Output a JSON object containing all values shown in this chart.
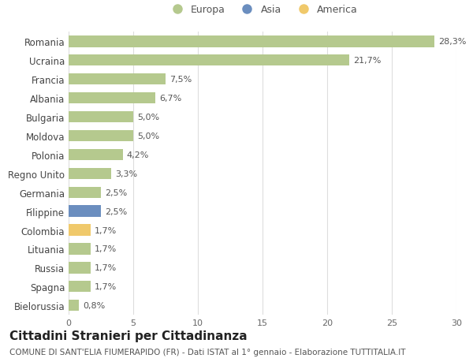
{
  "categories": [
    "Romania",
    "Ucraina",
    "Francia",
    "Albania",
    "Bulgaria",
    "Moldova",
    "Polonia",
    "Regno Unito",
    "Germania",
    "Filippine",
    "Colombia",
    "Lituania",
    "Russia",
    "Spagna",
    "Bielorussia"
  ],
  "values": [
    28.3,
    21.7,
    7.5,
    6.7,
    5.0,
    5.0,
    4.2,
    3.3,
    2.5,
    2.5,
    1.7,
    1.7,
    1.7,
    1.7,
    0.8
  ],
  "labels": [
    "28,3%",
    "21,7%",
    "7,5%",
    "6,7%",
    "5,0%",
    "5,0%",
    "4,2%",
    "3,3%",
    "2,5%",
    "2,5%",
    "1,7%",
    "1,7%",
    "1,7%",
    "1,7%",
    "0,8%"
  ],
  "bar_colors": [
    "#b5c98e",
    "#b5c98e",
    "#b5c98e",
    "#b5c98e",
    "#b5c98e",
    "#b5c98e",
    "#b5c98e",
    "#b5c98e",
    "#b5c98e",
    "#6b8ebf",
    "#f0c96b",
    "#b5c98e",
    "#b5c98e",
    "#b5c98e",
    "#b5c98e"
  ],
  "legend_labels": [
    "Europa",
    "Asia",
    "America"
  ],
  "legend_colors": [
    "#b5c98e",
    "#6b8ebf",
    "#f0c96b"
  ],
  "title": "Cittadini Stranieri per Cittadinanza",
  "subtitle": "COMUNE DI SANT'ELIA FIUMERAPIDO (FR) - Dati ISTAT al 1° gennaio - Elaborazione TUTTITALIA.IT",
  "xlim": [
    0,
    30
  ],
  "xticks": [
    0,
    5,
    10,
    15,
    20,
    25,
    30
  ],
  "background_color": "#ffffff",
  "grid_color": "#dddddd",
  "bar_height": 0.6,
  "title_fontsize": 11,
  "subtitle_fontsize": 7.5,
  "label_fontsize": 8,
  "tick_fontsize": 8,
  "legend_fontsize": 9,
  "ytick_fontsize": 8.5
}
